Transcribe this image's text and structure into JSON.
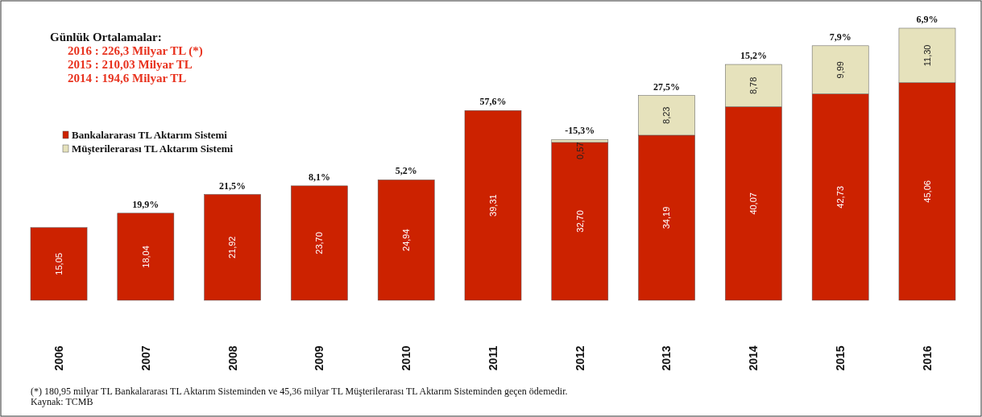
{
  "chart_data": {
    "type": "bar",
    "stacked": true,
    "title": "Günlük Ortalamalar:",
    "categories": [
      "2006",
      "2007",
      "2008",
      "2009",
      "2010",
      "2011",
      "2012",
      "2013",
      "2014",
      "2015",
      "2016"
    ],
    "series": [
      {
        "name": "Bankalararası TL Aktarım Sistemi",
        "color": "#cc2200",
        "values": [
          15.05,
          18.04,
          21.92,
          23.7,
          24.94,
          39.31,
          32.7,
          34.19,
          40.07,
          42.73,
          45.06
        ],
        "value_labels": [
          "15,05",
          "18,04",
          "21,92",
          "23,70",
          "24,94",
          "39,31",
          "32,70",
          "34,19",
          "40,07",
          "42,73",
          "45,06"
        ]
      },
      {
        "name": "Müşterilerarası TL Aktarım Sistemi",
        "color": "#e6e2bc",
        "values": [
          null,
          null,
          null,
          null,
          null,
          null,
          0.57,
          8.23,
          8.78,
          9.99,
          11.3
        ],
        "value_labels": [
          null,
          null,
          null,
          null,
          null,
          null,
          "0,57",
          "8,23",
          "8,78",
          "9,99",
          "11,30"
        ]
      }
    ],
    "legend": "top left",
    "annotations": [
      "2016 : 226,3 Milyar TL (*)",
      "2015 : 210,03 Milyar TL",
      "2014 : 194,6 Milyar TL",
      {
        "text": "19,9%",
        "x": "2007",
        "y": 18.04
      },
      {
        "text": "21,5%",
        "x": "2008",
        "y": 21.92
      },
      {
        "text": "8,1%",
        "x": "2009",
        "y": 23.7
      },
      {
        "text": "5,2%",
        "x": "2010",
        "y": 24.94
      },
      {
        "text": "57,6%",
        "x": "2011",
        "y": 39.31
      },
      {
        "text": "-15,3%",
        "x": "2012",
        "y": 33.27
      },
      {
        "text": "27,5%",
        "x": "2013",
        "y": 42.42
      },
      {
        "text": "15,2%",
        "x": "2014",
        "y": 48.85
      },
      {
        "text": "7,9%",
        "x": "2015",
        "y": 52.72
      },
      {
        "text": "6,9%",
        "x": "2016",
        "y": 56.36
      },
      "(*) 180,95 milyar TL Bankalararası TL Aktarım Sisteminden ve 45,36 milyar TL Müşterilerarası TL Aktarım Sisteminden geçen ödemedir.",
      "Kaynak: TCMB"
    ]
  }
}
